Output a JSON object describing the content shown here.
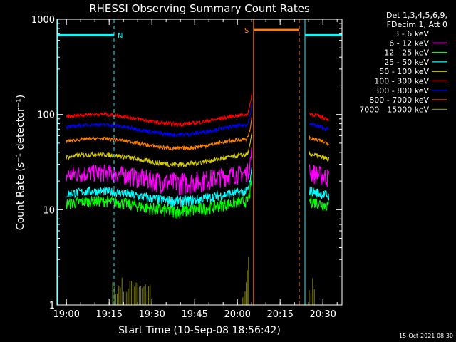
{
  "chart_data": {
    "type": "line",
    "title": "RHESSI Observing Summary Count Rates",
    "xlabel": "Start Time (10-Sep-08 18:56:42)",
    "ylabel": "Count Rate (s⁻¹ detector⁻¹)",
    "y_scale": "log",
    "ylim": [
      1,
      1000
    ],
    "xlim_minutes_since_start": [
      0,
      100
    ],
    "x_tick_labels": [
      "19:00",
      "19:15",
      "19:30",
      "19:45",
      "20:00",
      "20:15",
      "20:30"
    ],
    "y_tick_labels": [
      "1",
      "10",
      "100",
      "1000"
    ],
    "legend_header": [
      "Det 1,3,4,5,6,9,",
      "FDecim 1, Att 0"
    ],
    "legend_position": "right",
    "footer_date": "15-Oct-2021 08:30",
    "flags": [
      {
        "label": "N",
        "color": "#00ffff",
        "segments": [
          [
            0,
            20
          ],
          [
            87,
            100
          ]
        ],
        "level": 680
      },
      {
        "label": "S",
        "color": "#ff8000",
        "segments": [
          [
            69,
            85
          ]
        ],
        "level": 770
      }
    ],
    "gap_minutes": [
      68.5,
      86
    ],
    "series": [
      {
        "name": "3 - 6 keV",
        "color": "#000000",
        "level": 22
      },
      {
        "name": "6 - 12 keV",
        "color": "#ff00ff",
        "level": 22
      },
      {
        "name": "12 - 25 keV",
        "color": "#00ff00",
        "level": 11
      },
      {
        "name": "25 - 50 keV",
        "color": "#00ffff",
        "level": 14
      },
      {
        "name": "50 - 100 keV",
        "color": "#d4c800",
        "level": 34
      },
      {
        "name": "100 - 300 keV",
        "color": "#ff0000",
        "level": 90
      },
      {
        "name": "300 - 800 keV",
        "color": "#0000ff",
        "level": 70
      },
      {
        "name": "800 - 7000 keV",
        "color": "#ff8000",
        "level": 50
      },
      {
        "name": "7000 - 15000 keV",
        "color": "#808000",
        "level": 1.8
      }
    ]
  }
}
